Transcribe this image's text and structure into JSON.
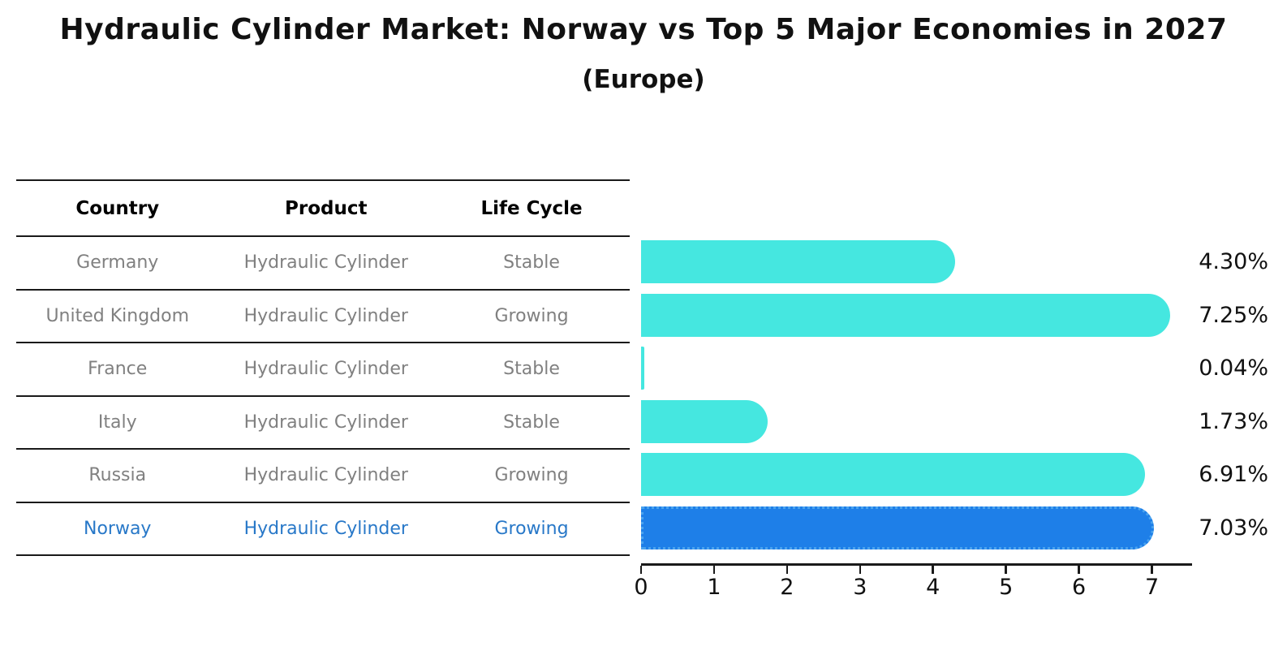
{
  "title": "Hydraulic Cylinder Market: Norway vs Top 5 Major Economies in 2027",
  "subtitle": "(Europe)",
  "table": {
    "headers": [
      "Country",
      "Product",
      "Life Cycle"
    ],
    "rows": [
      {
        "country": "Germany",
        "product": "Hydraulic Cylinder",
        "life_cycle": "Stable",
        "highlighted": false
      },
      {
        "country": "United Kingdom",
        "product": "Hydraulic Cylinder",
        "life_cycle": "Growing",
        "highlighted": false
      },
      {
        "country": "France",
        "product": "Hydraulic Cylinder",
        "life_cycle": "Stable",
        "highlighted": false
      },
      {
        "country": "Italy",
        "product": "Hydraulic Cylinder",
        "life_cycle": "Stable",
        "highlighted": false
      },
      {
        "country": "Russia",
        "product": "Hydraulic Cylinder",
        "life_cycle": "Growing",
        "highlighted": false
      },
      {
        "country": "Norway",
        "product": "Hydraulic Cylinder",
        "life_cycle": "Growing",
        "highlighted": true
      }
    ]
  },
  "chart_data": {
    "type": "bar",
    "orientation": "horizontal",
    "title": "Hydraulic Cylinder Market: Norway vs Top 5 Major Economies in 2027",
    "subtitle": "(Europe)",
    "categories": [
      "Germany",
      "United Kingdom",
      "France",
      "Italy",
      "Russia",
      "Norway"
    ],
    "values": [
      4.3,
      7.25,
      0.04,
      1.73,
      6.91,
      7.03
    ],
    "value_labels": [
      "4.30%",
      "7.25%",
      "0.04%",
      "1.73%",
      "6.91%",
      "7.03%"
    ],
    "highlight_index": 5,
    "xlabel": "",
    "ylabel": "",
    "xticks": [
      0,
      1,
      2,
      3,
      4,
      5,
      6,
      7
    ],
    "xlim": [
      0,
      7.55
    ],
    "grid": false,
    "legend": false
  },
  "colors": {
    "bar": "#45e7e0",
    "highlight_bar": "#1e7fe8",
    "highlight_bar_border": "#4aa3ef",
    "highlight_text": "#2878c8",
    "table_text": "#808080",
    "heading_text": "#000000",
    "axis": "#1a1a1a"
  }
}
